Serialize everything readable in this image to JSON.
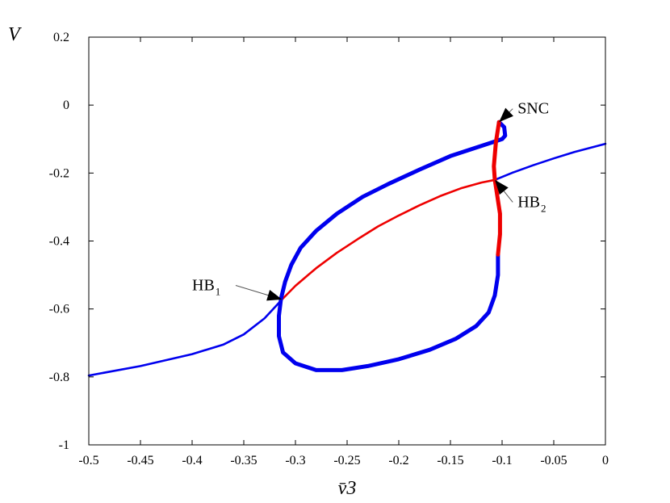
{
  "chart_data": {
    "type": "line",
    "title": "",
    "xlabel": "v̄3",
    "ylabel": "V",
    "xlim": [
      -0.5,
      0
    ],
    "ylim": [
      -1,
      0.2
    ],
    "grid": false,
    "x_ticks": [
      "-0.5",
      "-0.45",
      "-0.4",
      "-0.35",
      "-0.3",
      "-0.25",
      "-0.2",
      "-0.15",
      "-0.1",
      "-0.05",
      "0"
    ],
    "y_ticks": [
      "-1",
      "-0.8",
      "-0.6",
      "-0.4",
      "-0.2",
      "0",
      "0.2"
    ],
    "series": [
      {
        "color": "#0000ee",
        "style": "thin",
        "points": [
          [
            -0.5,
            -0.796
          ],
          [
            -0.45,
            -0.768
          ],
          [
            -0.4,
            -0.733
          ],
          [
            -0.37,
            -0.705
          ],
          [
            -0.35,
            -0.675
          ],
          [
            -0.33,
            -0.628
          ],
          [
            -0.313,
            -0.572
          ]
        ]
      },
      {
        "color": "#ee0000",
        "style": "thin",
        "points": [
          [
            -0.313,
            -0.572
          ],
          [
            -0.3,
            -0.532
          ],
          [
            -0.28,
            -0.48
          ],
          [
            -0.26,
            -0.435
          ],
          [
            -0.24,
            -0.395
          ],
          [
            -0.22,
            -0.357
          ],
          [
            -0.2,
            -0.325
          ],
          [
            -0.18,
            -0.295
          ],
          [
            -0.16,
            -0.268
          ],
          [
            -0.14,
            -0.245
          ],
          [
            -0.12,
            -0.228
          ],
          [
            -0.107,
            -0.22
          ]
        ]
      },
      {
        "color": "#0000ee",
        "style": "thin",
        "points": [
          [
            -0.107,
            -0.22
          ],
          [
            -0.09,
            -0.199
          ],
          [
            -0.07,
            -0.177
          ],
          [
            -0.05,
            -0.157
          ],
          [
            -0.03,
            -0.138
          ],
          [
            -0.01,
            -0.122
          ],
          [
            0,
            -0.114
          ]
        ]
      },
      {
        "color": "#0000ee",
        "style": "thick",
        "points": [
          [
            -0.104,
            -0.44
          ],
          [
            -0.104,
            -0.5
          ],
          [
            -0.107,
            -0.56
          ],
          [
            -0.113,
            -0.61
          ],
          [
            -0.125,
            -0.65
          ],
          [
            -0.145,
            -0.688
          ],
          [
            -0.17,
            -0.72
          ],
          [
            -0.2,
            -0.748
          ],
          [
            -0.23,
            -0.768
          ],
          [
            -0.255,
            -0.78
          ],
          [
            -0.28,
            -0.78
          ],
          [
            -0.3,
            -0.76
          ],
          [
            -0.312,
            -0.728
          ],
          [
            -0.316,
            -0.68
          ],
          [
            -0.316,
            -0.62
          ],
          [
            -0.314,
            -0.57
          ],
          [
            -0.31,
            -0.52
          ],
          [
            -0.304,
            -0.47
          ],
          [
            -0.295,
            -0.42
          ],
          [
            -0.28,
            -0.37
          ],
          [
            -0.26,
            -0.32
          ],
          [
            -0.235,
            -0.27
          ],
          [
            -0.21,
            -0.232
          ],
          [
            -0.18,
            -0.19
          ],
          [
            -0.15,
            -0.15
          ],
          [
            -0.13,
            -0.13
          ],
          [
            -0.11,
            -0.11
          ],
          [
            -0.1,
            -0.1
          ],
          [
            -0.097,
            -0.09
          ],
          [
            -0.098,
            -0.065
          ],
          [
            -0.103,
            -0.05
          ]
        ]
      },
      {
        "color": "#ee0000",
        "style": "thick",
        "points": [
          [
            -0.103,
            -0.05
          ],
          [
            -0.106,
            -0.11
          ],
          [
            -0.108,
            -0.18
          ],
          [
            -0.107,
            -0.22
          ],
          [
            -0.105,
            -0.26
          ],
          [
            -0.102,
            -0.32
          ],
          [
            -0.102,
            -0.38
          ],
          [
            -0.104,
            -0.44
          ]
        ]
      }
    ],
    "annotations": [
      {
        "label": "SNC",
        "subscript": "",
        "point": [
          -0.103,
          -0.05
        ],
        "text_at": [
          -0.085,
          -0.025
        ]
      },
      {
        "label": "HB",
        "subscript": "2",
        "point": [
          -0.107,
          -0.22
        ],
        "text_at": [
          -0.085,
          -0.3
        ]
      },
      {
        "label": "HB",
        "subscript": "1",
        "point": [
          -0.313,
          -0.572
        ],
        "text_at": [
          -0.4,
          -0.545
        ]
      }
    ]
  }
}
